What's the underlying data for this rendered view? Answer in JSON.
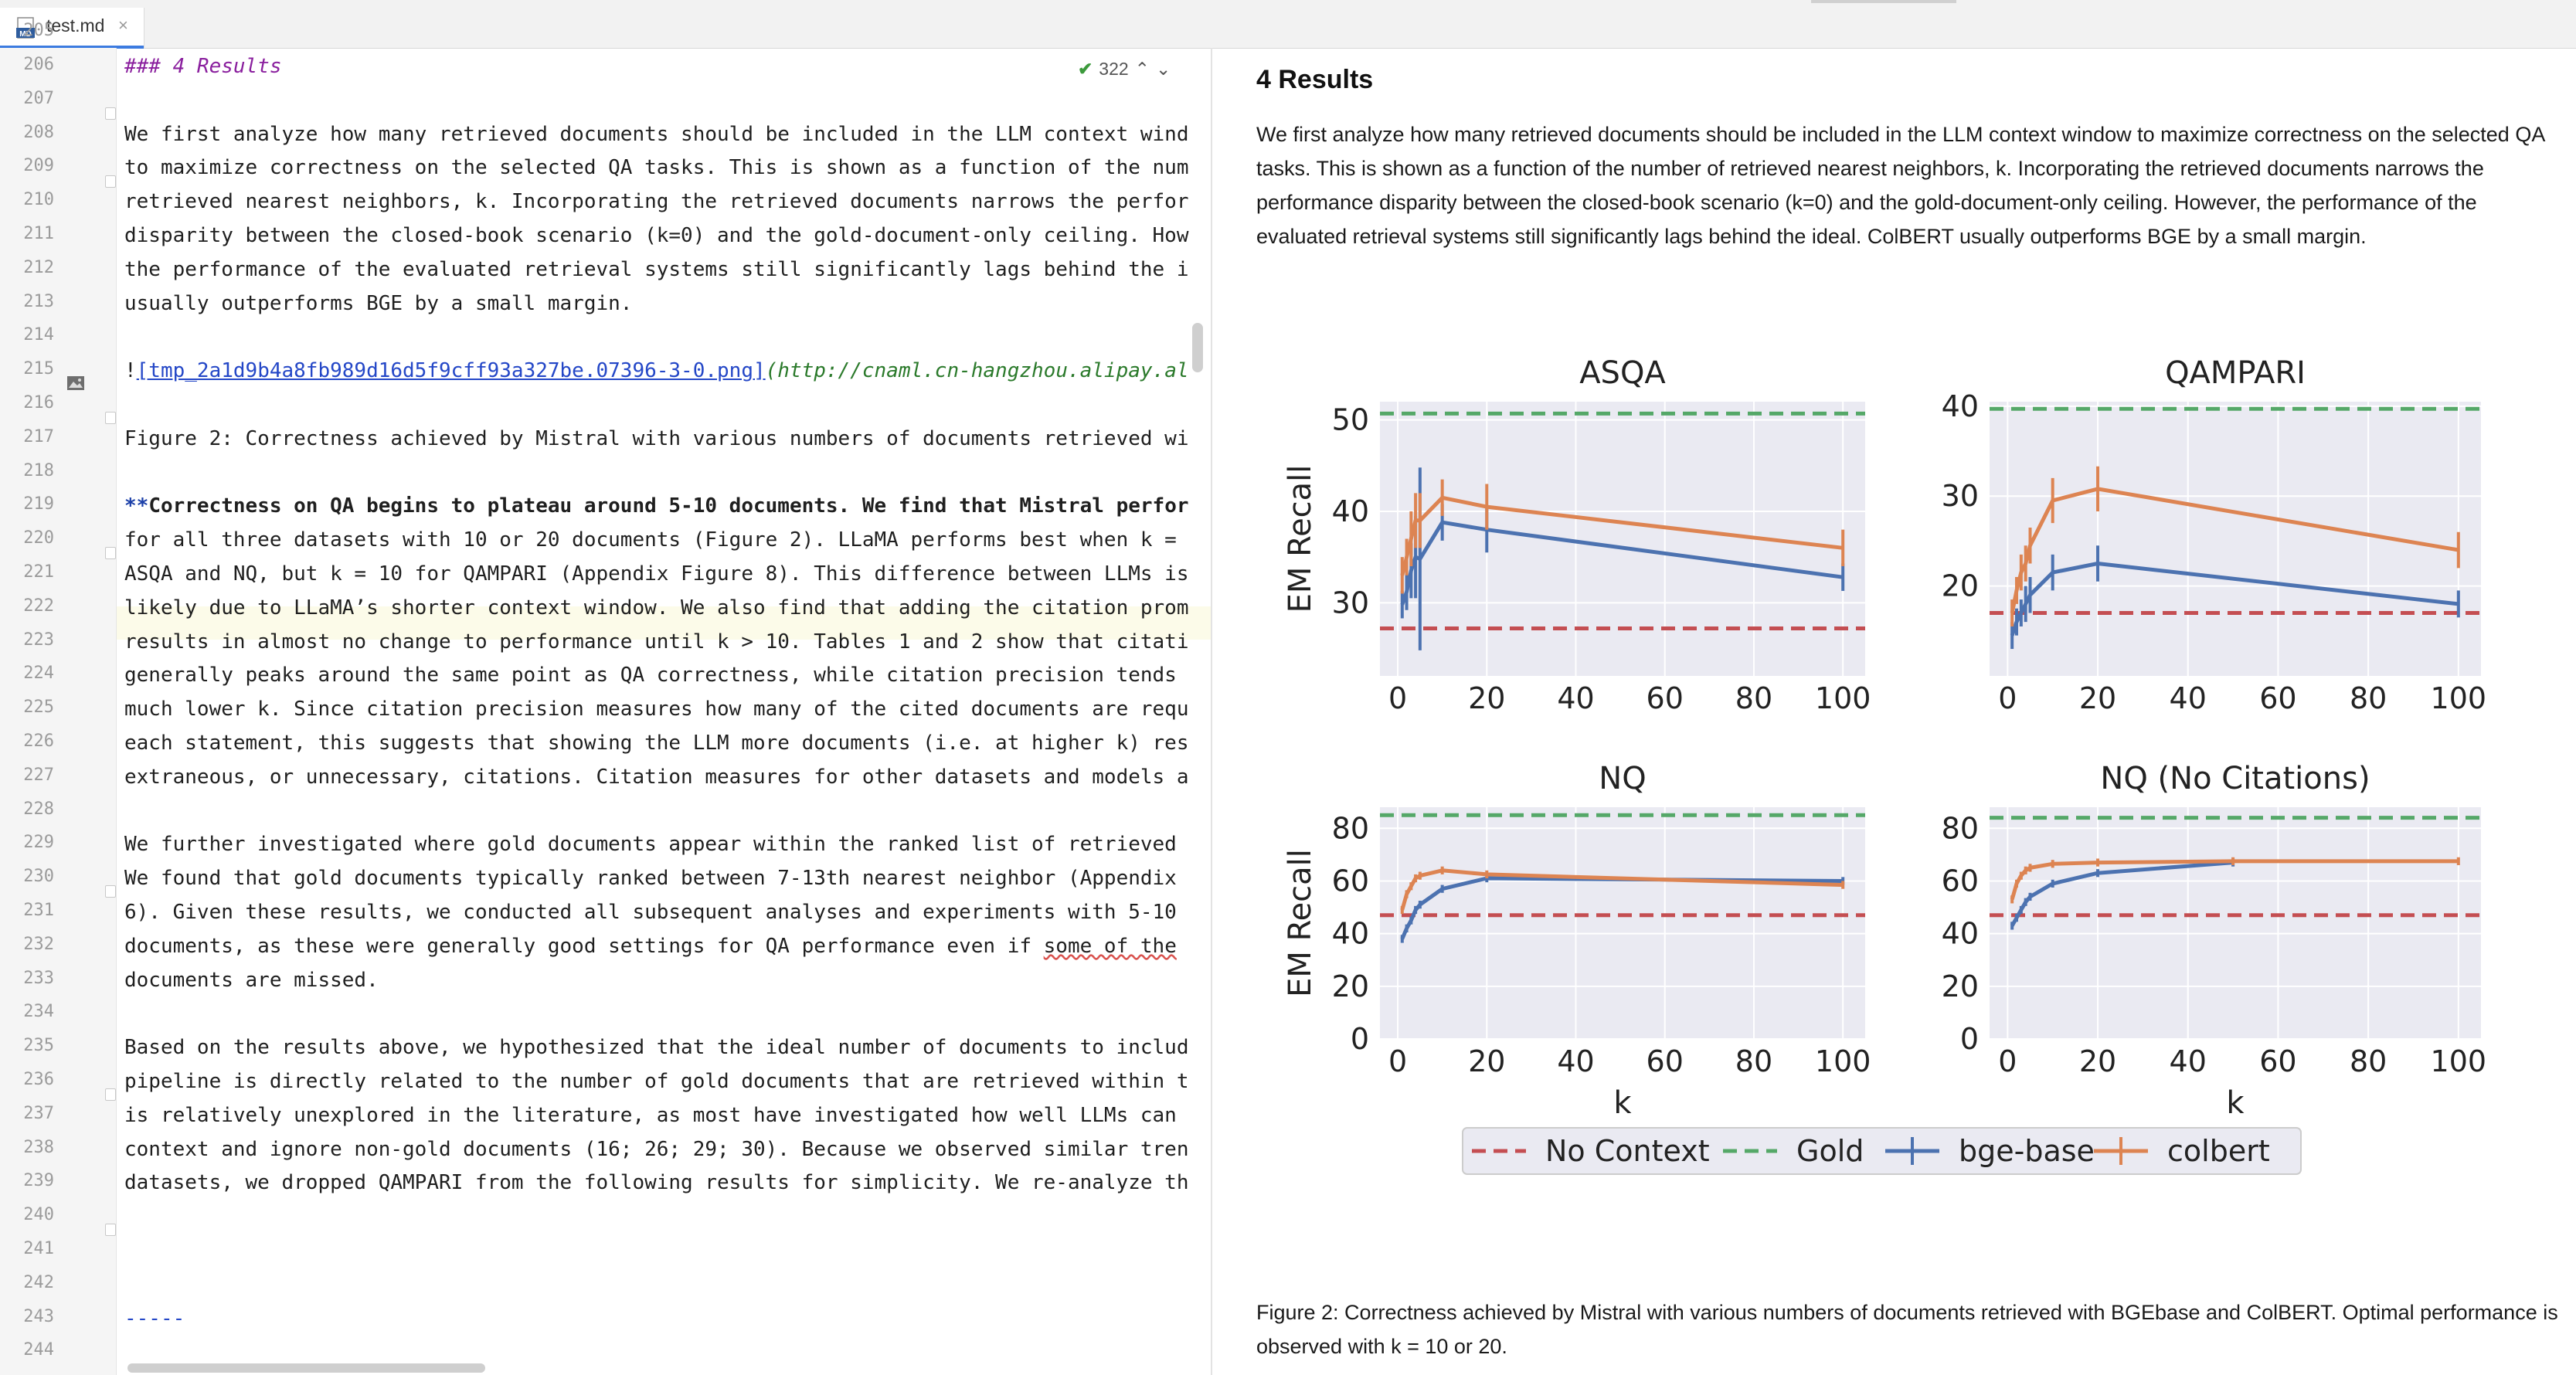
{
  "tab": {
    "filename": "test.md",
    "file_icon": "markdown-file-icon",
    "close_glyph": "×"
  },
  "inspection": {
    "count": "322",
    "check_glyph": "✔",
    "up_glyph": "⌃",
    "down_glyph": "⌄"
  },
  "editor": {
    "line_numbers": [
      "205",
      "206",
      "207",
      "208",
      "209",
      "210",
      "211",
      "212",
      "213",
      "214",
      "215",
      "216",
      "217",
      "218",
      "219",
      "220",
      "221",
      "222",
      "223",
      "224",
      "225",
      "226",
      "227",
      "228",
      "229",
      "230",
      "231",
      "232",
      "233",
      "234",
      "235",
      "236",
      "237",
      "238",
      "239",
      "240",
      "241",
      "242",
      "243",
      "244"
    ],
    "lines": {
      "l206": "### 4 Results",
      "l208": "We first analyze how many retrieved documents should be included in the LLM context wind",
      "l209": "to maximize correctness on the selected QA tasks. This is shown as a function of the num",
      "l210": "retrieved nearest neighbors, k. Incorporating the retrieved documents narrows the perfor",
      "l211": "disparity between the closed-book scenario (k=0) and the gold-document-only ceiling. How",
      "l212": "the performance of the evaluated retrieval systems still significantly lags behind the i",
      "l213": "usually outperforms BGE by a small margin.",
      "l215_bang": "!",
      "l215_link": "[tmp_2a1d9b4a8fb989d16d5f9cff93a327be.07396-3-0.png]",
      "l215_url": "(http://cnaml.cn-hangzhou.alipay.al",
      "l217": "Figure 2: Correctness achieved by Mistral with various numbers of documents retrieved wi",
      "l219_mark": "**",
      "l219_bold": "Correctness on QA begins to plateau around 5-10 documents. We find that Mistral perfor",
      "l220": "for all three datasets with 10 or 20 documents (Figure 2). LLaMA performs best when k =",
      "l221": "ASQA and NQ, but k = 10 for QAMPARI (Appendix Figure 8). This difference between LLMs is",
      "l222": "likely due to LLaMA’s shorter context window. We also find that adding the citation prom",
      "l223": "results in almost no change to performance until k > 10. Tables 1 and 2 show that citati",
      "l224": "generally peaks around the same point as QA correctness, while citation precision tends",
      "l225": "much lower k. Since citation precision measures how many of the cited documents are requ",
      "l226": "each statement, this suggests that showing the LLM more documents (i.e. at higher k) res",
      "l227": "extraneous, or unnecessary, citations. Citation measures for other datasets and models a",
      "l229": "We further investigated where gold documents appear within the ranked list of retrieved",
      "l230": "We found that gold documents typically ranked between 7-13th nearest neighbor (Appendix",
      "l231": "6). Given these results, we conducted all subsequent analyses and experiments with 5-10",
      "l232a": "documents, as these were generally good settings for QA performance even if ",
      "l232b": "some of the",
      "l233": "documents are missed.",
      "l235": "Based on the results above, we hypothesized that the ideal number of documents to includ",
      "l236": "pipeline is directly related to the number of gold documents that are retrieved within t",
      "l237": "is relatively unexplored in the literature, as most have investigated how well LLMs can",
      "l238": "context and ignore non-gold documents (16; 26; 29; 30). Because we observed similar tren",
      "l239": "datasets, we dropped QAMPARI from the following results for simplicity. We re-analyze th",
      "l243": "-----"
    }
  },
  "preview": {
    "title": "4 Results",
    "paragraph": "We first analyze how many retrieved documents should be included in the LLM context window to maximize correctness on the selected QA tasks. This is shown as a function of the number of retrieved nearest neighbors, k. Incorporating the retrieved documents narrows the performance disparity between the closed-book scenario (k=0) and the gold-document-only ceiling. However, the performance of the evaluated retrieval systems still significantly lags behind the ideal. ColBERT usually outperforms BGE by a small margin.",
    "caption": "Figure 2: Correctness achieved by Mistral with various numbers of documents retrieved with BGEbase and ColBERT. Optimal performance is observed with k = 10 or 20."
  },
  "colors": {
    "no_context": "#c44e52",
    "gold": "#55a868",
    "bge": "#4c72b0",
    "colbert": "#dd8452",
    "plot_bg": "#eaeaf2"
  },
  "chart_data": [
    {
      "type": "line",
      "title": "ASQA",
      "xlabel": "",
      "ylabel": "EM Recall",
      "xlim": [
        -4,
        105
      ],
      "ylim": [
        22,
        52
      ],
      "xticks": [
        0,
        20,
        40,
        60,
        80,
        100
      ],
      "yticks": [
        30,
        40,
        50
      ],
      "hlines": {
        "No Context": 27.2,
        "Gold": 50.7
      },
      "series": [
        {
          "name": "bge-base",
          "x": [
            1,
            2,
            3,
            4,
            5,
            10,
            20,
            100
          ],
          "y": [
            29.8,
            31.2,
            33.5,
            35.0,
            34.8,
            38.8,
            38.0,
            32.8
          ],
          "err": [
            1.5,
            2.0,
            3.0,
            4.5,
            10.0,
            2.0,
            2.5,
            1.5
          ]
        },
        {
          "name": "colbert",
          "x": [
            1,
            2,
            3,
            4,
            5,
            10,
            20,
            100
          ],
          "y": [
            33.0,
            35.0,
            37.0,
            39.0,
            39.0,
            41.5,
            40.5,
            36.0
          ],
          "err": [
            2.0,
            2.0,
            3.0,
            3.0,
            3.0,
            2.0,
            2.5,
            2.0
          ]
        }
      ]
    },
    {
      "type": "line",
      "title": "QAMPARI",
      "xlabel": "",
      "ylabel": "",
      "xlim": [
        -4,
        105
      ],
      "ylim": [
        10,
        40.5
      ],
      "xticks": [
        0,
        20,
        40,
        60,
        80,
        100
      ],
      "yticks": [
        20,
        30,
        40
      ],
      "hlines": {
        "No Context": 17.0,
        "Gold": 39.7
      },
      "series": [
        {
          "name": "bge-base",
          "x": [
            1,
            2,
            3,
            4,
            5,
            10,
            20,
            100
          ],
          "y": [
            14.5,
            16.0,
            17.0,
            18.0,
            19.0,
            21.5,
            22.5,
            18.0
          ],
          "err": [
            1.5,
            1.5,
            1.5,
            2.0,
            2.0,
            2.0,
            2.0,
            1.5
          ]
        },
        {
          "name": "colbert",
          "x": [
            1,
            2,
            3,
            4,
            5,
            10,
            20,
            100
          ],
          "y": [
            17.0,
            19.5,
            21.5,
            22.5,
            24.5,
            29.5,
            30.8,
            24.0
          ],
          "err": [
            1.5,
            1.5,
            2.0,
            2.0,
            2.0,
            2.5,
            2.5,
            2.0
          ]
        }
      ]
    },
    {
      "type": "line",
      "title": "NQ",
      "xlabel": "k",
      "ylabel": "EM Recall",
      "xlim": [
        -4,
        105
      ],
      "ylim": [
        0,
        88
      ],
      "xticks": [
        0,
        20,
        40,
        60,
        80,
        100
      ],
      "yticks": [
        0,
        20,
        40,
        60,
        80
      ],
      "hlines": {
        "No Context": 47.0,
        "Gold": 85.0
      },
      "series": [
        {
          "name": "bge-base",
          "x": [
            1,
            2,
            3,
            4,
            5,
            10,
            20,
            100
          ],
          "y": [
            38.0,
            42.0,
            45.0,
            49.0,
            51.0,
            57.0,
            61.0,
            60.0
          ],
          "err": [
            1.5,
            1.5,
            1.5,
            1.5,
            1.5,
            1.5,
            1.5,
            1.5
          ]
        },
        {
          "name": "colbert",
          "x": [
            1,
            2,
            3,
            4,
            5,
            10,
            20,
            100
          ],
          "y": [
            49.0,
            55.0,
            58.0,
            61.0,
            62.0,
            64.0,
            62.5,
            58.5
          ],
          "err": [
            1.5,
            1.5,
            1.5,
            1.5,
            1.5,
            1.5,
            1.5,
            1.5
          ]
        }
      ]
    },
    {
      "type": "line",
      "title": "NQ (No Citations)",
      "xlabel": "k",
      "ylabel": "",
      "xlim": [
        -4,
        105
      ],
      "ylim": [
        0,
        88
      ],
      "xticks": [
        0,
        20,
        40,
        60,
        80,
        100
      ],
      "yticks": [
        0,
        20,
        40,
        60,
        80
      ],
      "hlines": {
        "No Context": 47.0,
        "Gold": 84.0
      },
      "series": [
        {
          "name": "bge-base",
          "x": [
            1,
            2,
            3,
            4,
            5,
            10,
            20,
            50
          ],
          "y": [
            43.0,
            46.0,
            49.0,
            52.0,
            54.0,
            59.0,
            63.0,
            67.0
          ],
          "err": [
            1.5,
            1.5,
            1.5,
            1.5,
            1.5,
            1.5,
            1.5,
            1.5
          ]
        },
        {
          "name": "colbert",
          "x": [
            1,
            2,
            3,
            4,
            5,
            10,
            20,
            50,
            100
          ],
          "y": [
            53.0,
            59.0,
            62.0,
            64.0,
            65.0,
            66.5,
            67.0,
            67.5,
            67.5
          ],
          "err": [
            1.5,
            1.5,
            1.5,
            1.5,
            1.5,
            1.5,
            1.5,
            1.5,
            1.5
          ]
        }
      ]
    }
  ],
  "legend": {
    "items": [
      "No Context",
      "Gold",
      "bge-base",
      "colbert"
    ],
    "placement": "bottom-center"
  }
}
